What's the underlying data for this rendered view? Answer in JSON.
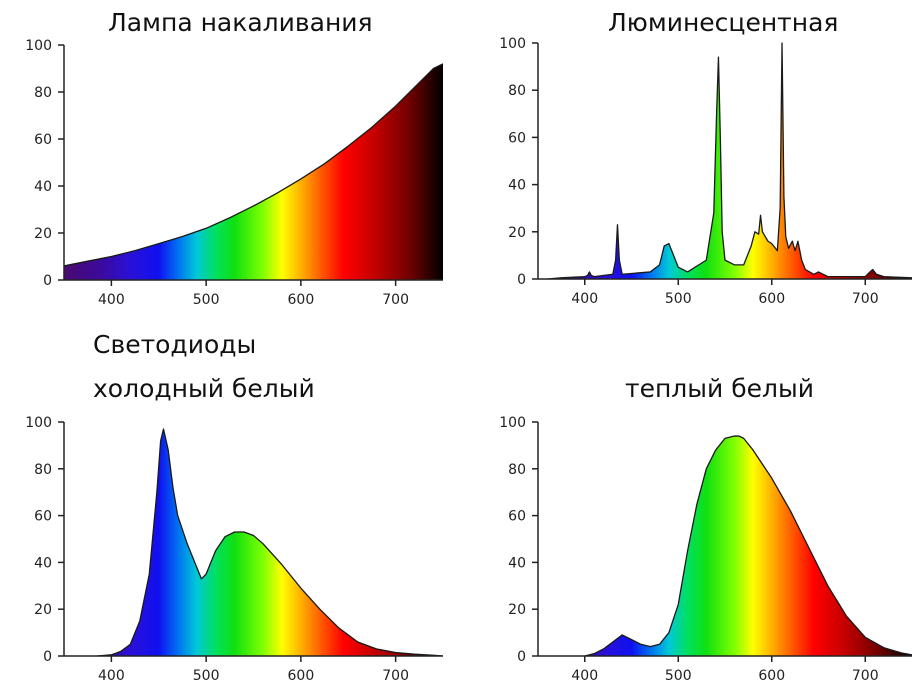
{
  "group_label_line1": "Светодиоды",
  "chart_data": [
    {
      "type": "area",
      "title": "Лампа накаливания",
      "xlabel": "",
      "ylabel": "",
      "xlim": [
        350,
        750
      ],
      "ylim": [
        0,
        100
      ],
      "x_ticks": [
        400,
        500,
        600,
        700
      ],
      "y_ticks": [
        0,
        20,
        40,
        60,
        80,
        100
      ],
      "x_tick_labels": [
        "400",
        "500",
        "600",
        "700"
      ],
      "y_tick_labels": [
        "0",
        "20",
        "40",
        "60",
        "80",
        "100"
      ],
      "fill": "spectrum",
      "series": [
        {
          "x": [
            350,
            375,
            400,
            425,
            450,
            475,
            500,
            525,
            550,
            575,
            600,
            625,
            650,
            675,
            700,
            725,
            740,
            750
          ],
          "values": [
            6,
            8,
            10,
            12.5,
            15.5,
            18.5,
            22,
            26.5,
            31.5,
            37,
            43,
            49.5,
            57,
            65,
            74,
            84,
            90,
            92
          ]
        }
      ]
    },
    {
      "type": "area",
      "title": "Люминесцентная",
      "xlabel": "",
      "ylabel": "",
      "xlim": [
        350,
        750
      ],
      "ylim": [
        0,
        100
      ],
      "x_ticks": [
        400,
        500,
        600,
        700
      ],
      "y_ticks": [
        0,
        20,
        40,
        60,
        80,
        100
      ],
      "x_tick_labels": [
        "400",
        "500",
        "600",
        "700"
      ],
      "y_tick_labels": [
        "0",
        "20",
        "40",
        "60",
        "80",
        "100"
      ],
      "fill": "spectrum",
      "series": [
        {
          "x": [
            360,
            375,
            400,
            403,
            405,
            407,
            410,
            430,
            433,
            435,
            437,
            440,
            470,
            480,
            485,
            490,
            495,
            500,
            510,
            530,
            538,
            541,
            543,
            545,
            547,
            550,
            560,
            570,
            578,
            582,
            586,
            588,
            590,
            593,
            596,
            600,
            606,
            609,
            611,
            613,
            615,
            618,
            622,
            625,
            628,
            632,
            636,
            645,
            650,
            655,
            660,
            700,
            705,
            708,
            712,
            720,
            750
          ],
          "values": [
            0,
            0.5,
            1,
            1.5,
            3,
            1.5,
            1,
            2,
            8,
            23,
            8,
            2,
            3,
            6,
            14,
            15,
            10,
            5,
            3,
            8,
            28,
            70,
            94,
            60,
            20,
            8,
            6,
            6,
            14,
            20,
            19,
            27,
            20,
            18,
            16,
            15,
            12,
            30,
            100,
            35,
            18,
            13,
            16,
            12,
            16,
            8,
            4,
            2,
            3,
            2,
            1,
            1,
            3,
            4,
            2,
            1,
            0.5
          ]
        }
      ]
    },
    {
      "type": "area",
      "title": "холодный белый",
      "xlabel": "",
      "ylabel": "",
      "xlim": [
        350,
        750
      ],
      "ylim": [
        0,
        100
      ],
      "x_ticks": [
        400,
        500,
        600,
        700
      ],
      "y_ticks": [
        0,
        20,
        40,
        60,
        80,
        100
      ],
      "x_tick_labels": [
        "400",
        "500",
        "600",
        "700"
      ],
      "y_tick_labels": [
        "0",
        "20",
        "40",
        "60",
        "80",
        "100"
      ],
      "fill": "spectrum",
      "series": [
        {
          "x": [
            385,
            400,
            410,
            420,
            430,
            440,
            448,
            452,
            455,
            460,
            465,
            470,
            480,
            490,
            495,
            500,
            505,
            510,
            520,
            530,
            540,
            550,
            560,
            570,
            580,
            600,
            620,
            640,
            660,
            680,
            700,
            720,
            740,
            750
          ],
          "values": [
            0,
            0.5,
            2,
            5,
            15,
            35,
            70,
            92,
            97,
            88,
            72,
            60,
            48,
            38,
            33,
            35,
            40,
            45,
            51,
            53,
            53,
            51.5,
            48,
            43.5,
            39,
            29,
            20,
            12,
            6,
            3,
            1.5,
            0.8,
            0.3,
            0
          ]
        }
      ]
    },
    {
      "type": "area",
      "title": "теплый белый",
      "xlabel": "",
      "ylabel": "",
      "xlim": [
        350,
        750
      ],
      "ylim": [
        0,
        100
      ],
      "x_ticks": [
        400,
        500,
        600,
        700
      ],
      "y_ticks": [
        0,
        20,
        40,
        60,
        80,
        100
      ],
      "x_tick_labels": [
        "400",
        "500",
        "600",
        "700"
      ],
      "y_tick_labels": [
        "0",
        "20",
        "40",
        "60",
        "80",
        "100"
      ],
      "fill": "spectrum",
      "series": [
        {
          "x": [
            400,
            410,
            420,
            430,
            440,
            450,
            460,
            470,
            480,
            490,
            500,
            510,
            520,
            530,
            540,
            550,
            560,
            565,
            570,
            580,
            590,
            600,
            620,
            640,
            660,
            680,
            700,
            720,
            740,
            750
          ],
          "values": [
            0,
            1,
            3,
            6,
            9,
            7,
            5,
            4,
            5,
            10,
            22,
            45,
            65,
            80,
            88,
            93,
            94,
            94,
            93,
            88,
            82,
            76,
            62,
            46,
            30,
            17,
            8,
            3.5,
            1.2,
            0.5
          ]
        }
      ]
    }
  ]
}
